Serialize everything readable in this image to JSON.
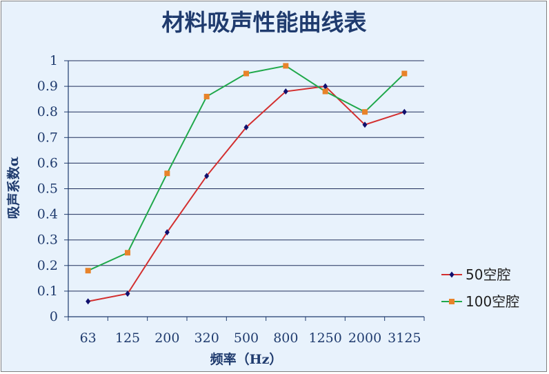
{
  "chart_data": {
    "type": "line",
    "title": "材料吸声性能曲线表",
    "xlabel": "频率（Hz）",
    "ylabel": "吸声系数α",
    "categories": [
      "63",
      "125",
      "200",
      "320",
      "500",
      "800",
      "1250",
      "2000",
      "3125"
    ],
    "ylim": [
      0,
      1
    ],
    "yticks": [
      "0",
      "0.1",
      "0.2",
      "0.3",
      "0.4",
      "0.5",
      "0.6",
      "0.7",
      "0.8",
      "0.9",
      "1"
    ],
    "grid": true,
    "legend_position": "right",
    "series": [
      {
        "name": "50空腔",
        "color": "#d32f2f",
        "marker_color": "#10106e",
        "marker": "diamond",
        "values": [
          0.06,
          0.09,
          0.33,
          0.55,
          0.74,
          0.88,
          0.9,
          0.75,
          0.8
        ]
      },
      {
        "name": "100空腔",
        "color": "#1fa84a",
        "marker_color": "#e8832a",
        "marker": "square",
        "values": [
          0.18,
          0.25,
          0.56,
          0.86,
          0.95,
          0.98,
          0.88,
          0.8,
          0.95
        ]
      }
    ]
  }
}
